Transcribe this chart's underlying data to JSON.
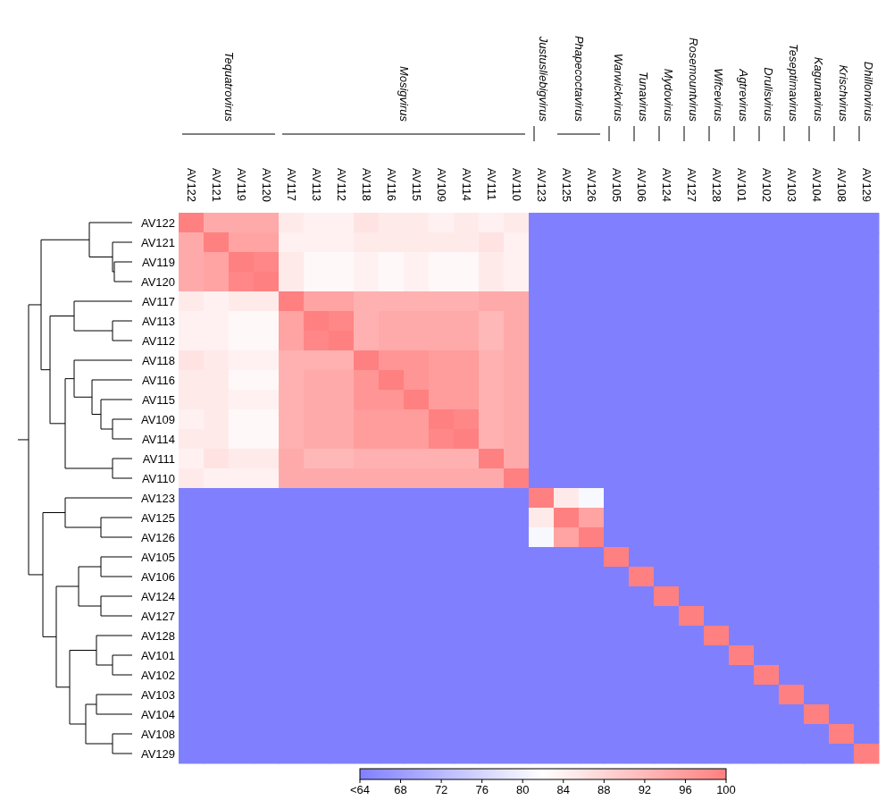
{
  "chart_data": {
    "type": "heatmap",
    "categories": [
      "AV122",
      "AV121",
      "AV119",
      "AV120",
      "AV117",
      "AV113",
      "AV112",
      "AV118",
      "AV116",
      "AV115",
      "AV109",
      "AV114",
      "AV111",
      "AV110",
      "AV123",
      "AV125",
      "AV126",
      "AV105",
      "AV106",
      "AV124",
      "AV127",
      "AV128",
      "AV101",
      "AV102",
      "AV103",
      "AV104",
      "AV108",
      "AV129"
    ],
    "y_categories": [
      "AV122",
      "AV121",
      "AV119",
      "AV120",
      "AV117",
      "AV113",
      "AV112",
      "AV118",
      "AV116",
      "AV115",
      "AV109",
      "AV114",
      "AV111",
      "AV110",
      "AV123",
      "AV125",
      "AV126",
      "AV105",
      "AV106",
      "AV124",
      "AV127",
      "AV128",
      "AV101",
      "AV102",
      "AV103",
      "AV104",
      "AV108",
      "AV129"
    ],
    "cells": [
      [
        100,
        94,
        94,
        94,
        85,
        84,
        84,
        86,
        85,
        85,
        84,
        85,
        84,
        85,
        64,
        64,
        64,
        64,
        64,
        64,
        64,
        64,
        64,
        64,
        64,
        64,
        64,
        64
      ],
      [
        94,
        100,
        95,
        95,
        84,
        84,
        84,
        85,
        85,
        85,
        85,
        85,
        86,
        84,
        64,
        64,
        64,
        64,
        64,
        64,
        64,
        64,
        64,
        64,
        64,
        64,
        64,
        64
      ],
      [
        94,
        95,
        100,
        99,
        85,
        83,
        83,
        84,
        83,
        84,
        83,
        83,
        85,
        84,
        64,
        64,
        64,
        64,
        64,
        64,
        64,
        64,
        64,
        64,
        64,
        64,
        64,
        64
      ],
      [
        94,
        95,
        99,
        100,
        85,
        83,
        83,
        84,
        83,
        84,
        83,
        83,
        85,
        84,
        64,
        64,
        64,
        64,
        64,
        64,
        64,
        64,
        64,
        64,
        64,
        64,
        64,
        64
      ],
      [
        85,
        84,
        85,
        85,
        100,
        95,
        95,
        93,
        93,
        93,
        93,
        93,
        94,
        94,
        64,
        64,
        64,
        64,
        64,
        64,
        64,
        64,
        64,
        64,
        64,
        64,
        64,
        64
      ],
      [
        84,
        84,
        83,
        83,
        95,
        100,
        99,
        93,
        94,
        94,
        94,
        94,
        92,
        94,
        64,
        64,
        64,
        64,
        64,
        64,
        64,
        64,
        64,
        64,
        64,
        64,
        64,
        64
      ],
      [
        84,
        84,
        83,
        83,
        95,
        99,
        100,
        93,
        94,
        94,
        94,
        94,
        92,
        94,
        64,
        64,
        64,
        64,
        64,
        64,
        64,
        64,
        64,
        64,
        64,
        64,
        64,
        64
      ],
      [
        86,
        85,
        84,
        84,
        93,
        93,
        93,
        100,
        97,
        97,
        96,
        96,
        93,
        94,
        64,
        64,
        64,
        64,
        64,
        64,
        64,
        64,
        64,
        64,
        64,
        64,
        64,
        64
      ],
      [
        85,
        85,
        83,
        83,
        93,
        94,
        94,
        97,
        100,
        97,
        96,
        96,
        93,
        94,
        64,
        64,
        64,
        64,
        64,
        64,
        64,
        64,
        64,
        64,
        64,
        64,
        64,
        64
      ],
      [
        85,
        85,
        84,
        84,
        93,
        94,
        94,
        97,
        97,
        100,
        96,
        96,
        93,
        94,
        64,
        64,
        64,
        64,
        64,
        64,
        64,
        64,
        64,
        64,
        64,
        64,
        64,
        64
      ],
      [
        84,
        85,
        83,
        83,
        93,
        94,
        94,
        96,
        96,
        96,
        100,
        99,
        93,
        94,
        64,
        64,
        64,
        64,
        64,
        64,
        64,
        64,
        64,
        64,
        64,
        64,
        64,
        64
      ],
      [
        85,
        85,
        83,
        83,
        93,
        94,
        94,
        96,
        96,
        96,
        99,
        100,
        93,
        94,
        64,
        64,
        64,
        64,
        64,
        64,
        64,
        64,
        64,
        64,
        64,
        64,
        64,
        64
      ],
      [
        84,
        86,
        85,
        85,
        94,
        92,
        92,
        93,
        93,
        93,
        93,
        93,
        100,
        94,
        64,
        64,
        64,
        64,
        64,
        64,
        64,
        64,
        64,
        64,
        64,
        64,
        64,
        64
      ],
      [
        85,
        84,
        84,
        84,
        94,
        94,
        94,
        94,
        94,
        94,
        94,
        94,
        94,
        100,
        64,
        64,
        64,
        64,
        64,
        64,
        64,
        64,
        64,
        64,
        64,
        64,
        64,
        64
      ],
      [
        64,
        64,
        64,
        64,
        64,
        64,
        64,
        64,
        64,
        64,
        64,
        64,
        64,
        64,
        100,
        85,
        81,
        64,
        64,
        64,
        64,
        64,
        64,
        64,
        64,
        64,
        64,
        64
      ],
      [
        64,
        64,
        64,
        64,
        64,
        64,
        64,
        64,
        64,
        64,
        64,
        64,
        64,
        64,
        85,
        100,
        95,
        64,
        64,
        64,
        64,
        64,
        64,
        64,
        64,
        64,
        64,
        64
      ],
      [
        64,
        64,
        64,
        64,
        64,
        64,
        64,
        64,
        64,
        64,
        64,
        64,
        64,
        64,
        81,
        95,
        100,
        64,
        64,
        64,
        64,
        64,
        64,
        64,
        64,
        64,
        64,
        64
      ],
      [
        64,
        64,
        64,
        64,
        64,
        64,
        64,
        64,
        64,
        64,
        64,
        64,
        64,
        64,
        64,
        64,
        64,
        100,
        64,
        64,
        64,
        64,
        64,
        64,
        64,
        64,
        64,
        64
      ],
      [
        64,
        64,
        64,
        64,
        64,
        64,
        64,
        64,
        64,
        64,
        64,
        64,
        64,
        64,
        64,
        64,
        64,
        64,
        100,
        64,
        64,
        64,
        64,
        64,
        64,
        64,
        64,
        64
      ],
      [
        64,
        64,
        64,
        64,
        64,
        64,
        64,
        64,
        64,
        64,
        64,
        64,
        64,
        64,
        64,
        64,
        64,
        64,
        64,
        100,
        64,
        64,
        64,
        64,
        64,
        64,
        64,
        64
      ],
      [
        64,
        64,
        64,
        64,
        64,
        64,
        64,
        64,
        64,
        64,
        64,
        64,
        64,
        64,
        64,
        64,
        64,
        64,
        64,
        64,
        100,
        64,
        64,
        64,
        64,
        64,
        64,
        64
      ],
      [
        64,
        64,
        64,
        64,
        64,
        64,
        64,
        64,
        64,
        64,
        64,
        64,
        64,
        64,
        64,
        64,
        64,
        64,
        64,
        64,
        64,
        100,
        64,
        64,
        64,
        64,
        64,
        64
      ],
      [
        64,
        64,
        64,
        64,
        64,
        64,
        64,
        64,
        64,
        64,
        64,
        64,
        64,
        64,
        64,
        64,
        64,
        64,
        64,
        64,
        64,
        64,
        100,
        64,
        64,
        64,
        64,
        64
      ],
      [
        64,
        64,
        64,
        64,
        64,
        64,
        64,
        64,
        64,
        64,
        64,
        64,
        64,
        64,
        64,
        64,
        64,
        64,
        64,
        64,
        64,
        64,
        64,
        100,
        64,
        64,
        64,
        64
      ],
      [
        64,
        64,
        64,
        64,
        64,
        64,
        64,
        64,
        64,
        64,
        64,
        64,
        64,
        64,
        64,
        64,
        64,
        64,
        64,
        64,
        64,
        64,
        64,
        64,
        100,
        64,
        64,
        64
      ],
      [
        64,
        64,
        64,
        64,
        64,
        64,
        64,
        64,
        64,
        64,
        64,
        64,
        64,
        64,
        64,
        64,
        64,
        64,
        64,
        64,
        64,
        64,
        64,
        64,
        64,
        100,
        64,
        64
      ],
      [
        64,
        64,
        64,
        64,
        64,
        64,
        64,
        64,
        64,
        64,
        64,
        64,
        64,
        64,
        64,
        64,
        64,
        64,
        64,
        64,
        64,
        64,
        64,
        64,
        64,
        64,
        100,
        64
      ],
      [
        64,
        64,
        64,
        64,
        64,
        64,
        64,
        64,
        64,
        64,
        64,
        64,
        64,
        64,
        64,
        64,
        64,
        64,
        64,
        64,
        64,
        64,
        64,
        64,
        64,
        64,
        64,
        100
      ]
    ],
    "clim": [
      64,
      100
    ],
    "cticks": [
      {
        "value": 64,
        "label": "<64"
      },
      68,
      72,
      76,
      80,
      84,
      88,
      92,
      96,
      100
    ],
    "annotations": [
      "Tequatrovirus",
      "Mosigvirus",
      "Justusliebigvirus",
      "Phapecoctavirus",
      "Warwickvirus",
      "Tunavirus",
      "Mydovirus",
      "Rosemountvirus",
      "Wifcevirus",
      "Agtrevirus",
      "Drulisvirus",
      "Teseptimavirus",
      "Kagunavirus",
      "Krischvirus",
      "Dhillonvirus"
    ]
  }
}
